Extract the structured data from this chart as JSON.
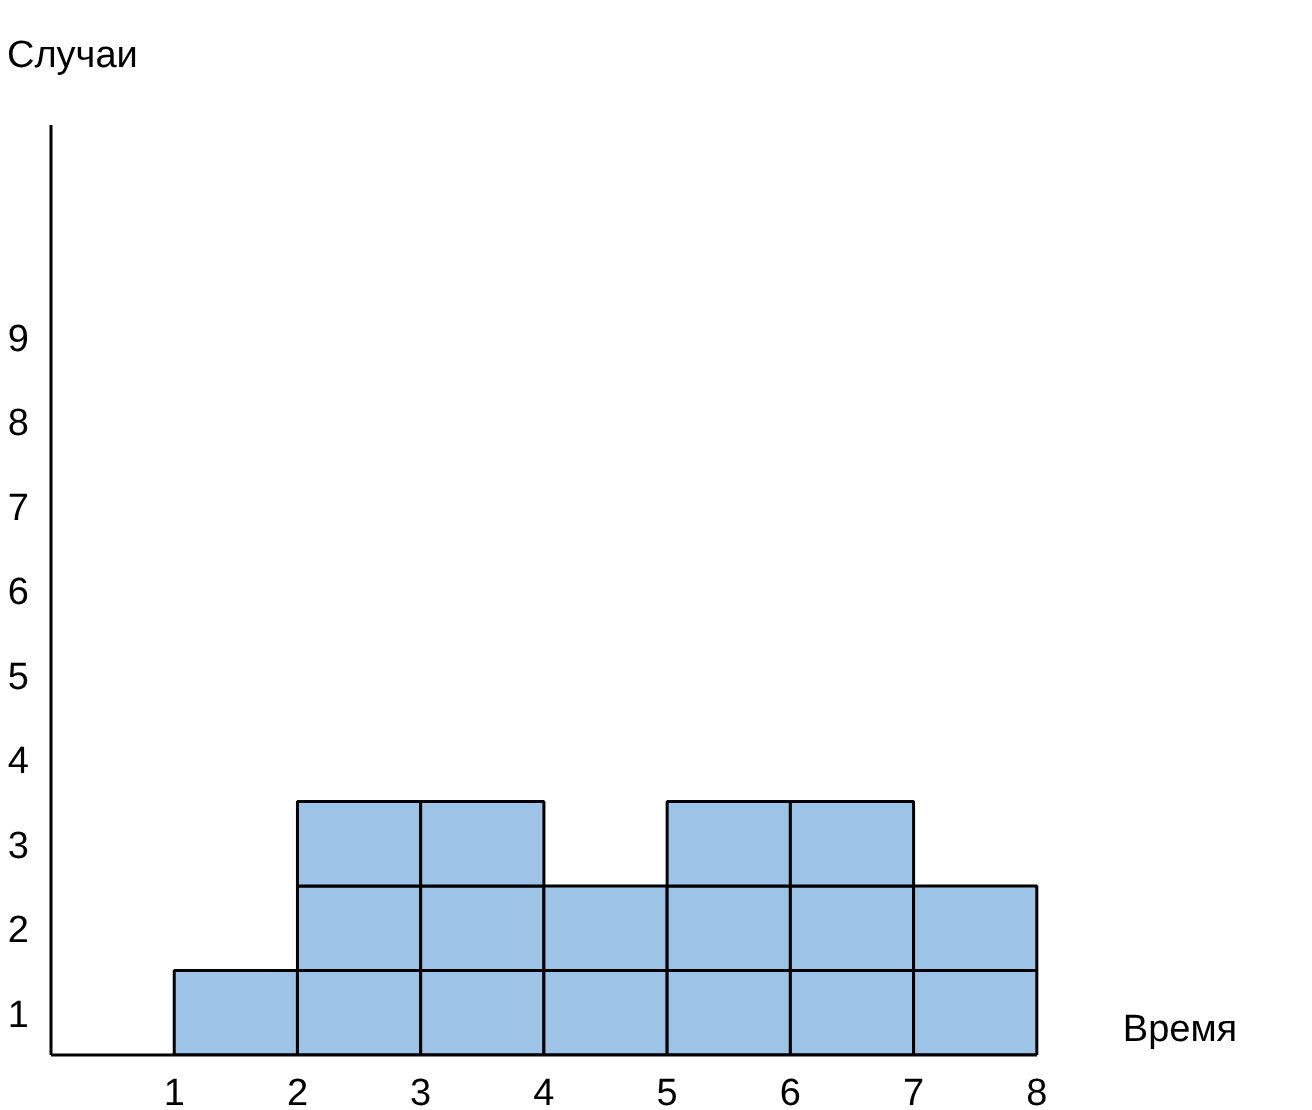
{
  "chart_data": {
    "type": "bar",
    "ylabel": "Случаи",
    "xlabel": "Время",
    "x": [
      1.5,
      2.5,
      3.5,
      4.5,
      5.5,
      6.5,
      7.5
    ],
    "stacked": true,
    "series": [
      {
        "color": "#9dc3e6",
        "values": [
          1,
          1,
          1,
          1,
          1,
          1,
          1
        ]
      },
      {
        "color": "#9dc3e6",
        "values": [
          null,
          1,
          1,
          1,
          1,
          1,
          1
        ]
      },
      {
        "color": "#9dc3e6",
        "values": [
          null,
          1,
          1,
          null,
          1,
          1,
          null
        ]
      }
    ],
    "xlim": [
      0,
      8
    ],
    "xticks": [
      1,
      2,
      3,
      4,
      5,
      6,
      7,
      8
    ],
    "ylim": [
      0,
      11
    ],
    "yticks": [
      {
        "value": 0.5,
        "label": "1"
      },
      {
        "value": 1.5,
        "label": "2"
      },
      {
        "value": 2.5,
        "label": "3"
      },
      {
        "value": 3.5,
        "label": "4"
      },
      {
        "value": 4.5,
        "label": "5"
      },
      {
        "value": 5.5,
        "label": "6"
      },
      {
        "value": 6.5,
        "label": "7"
      },
      {
        "value": 7.5,
        "label": "8"
      },
      {
        "value": 8.5,
        "label": "9"
      }
    ],
    "grid": false
  }
}
